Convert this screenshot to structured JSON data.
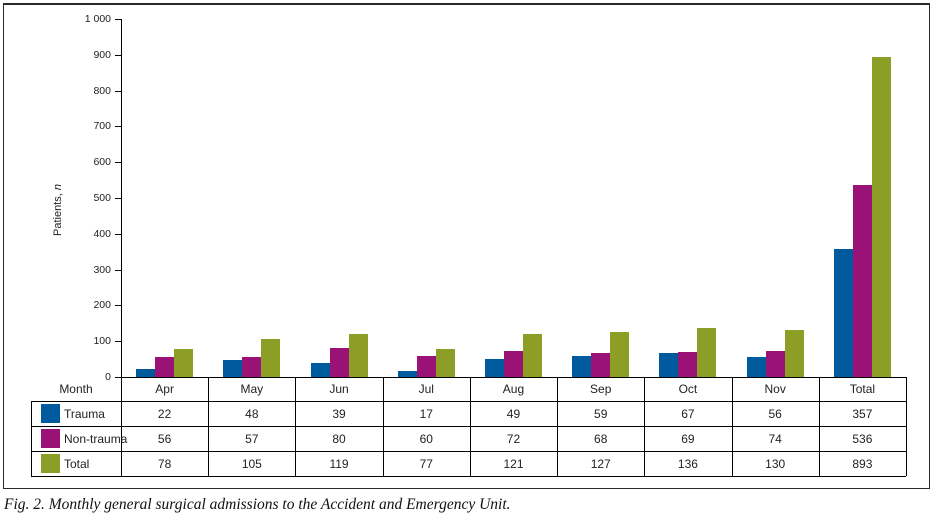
{
  "caption": "Fig. 2. Monthly general surgical admissions to the Accident and Emergency Unit.",
  "chart_data": {
    "type": "bar",
    "title": "",
    "xlabel": "",
    "ylabel_text": "Patients,",
    "ylabel_suffix": "n",
    "ylim": [
      0,
      1000
    ],
    "grid": false,
    "legend_position": "table-left-column",
    "yticks": [
      {
        "value": 0,
        "label": "0"
      },
      {
        "value": 100,
        "label": "100"
      },
      {
        "value": 200,
        "label": "200"
      },
      {
        "value": 300,
        "label": "300"
      },
      {
        "value": 400,
        "label": "400"
      },
      {
        "value": 500,
        "label": "500"
      },
      {
        "value": 600,
        "label": "600"
      },
      {
        "value": 700,
        "label": "700"
      },
      {
        "value": 800,
        "label": "800"
      },
      {
        "value": 900,
        "label": "900"
      },
      {
        "value": 1000,
        "label": "1 000"
      }
    ],
    "categories": [
      "Apr",
      "May",
      "Jun",
      "Jul",
      "Aug",
      "Sep",
      "Oct",
      "Nov",
      "Total"
    ],
    "series": [
      {
        "name": "Trauma",
        "color": "#005a9e",
        "values": [
          22,
          48,
          39,
          17,
          49,
          59,
          67,
          56,
          357
        ]
      },
      {
        "name": "Non-trauma",
        "color": "#9b1277",
        "values": [
          56,
          57,
          80,
          60,
          72,
          68,
          69,
          74,
          536
        ]
      },
      {
        "name": "Total",
        "color": "#8c9e25",
        "values": [
          78,
          105,
          119,
          77,
          121,
          127,
          136,
          130,
          893
        ]
      }
    ]
  },
  "table": {
    "corner_label": "Month"
  }
}
